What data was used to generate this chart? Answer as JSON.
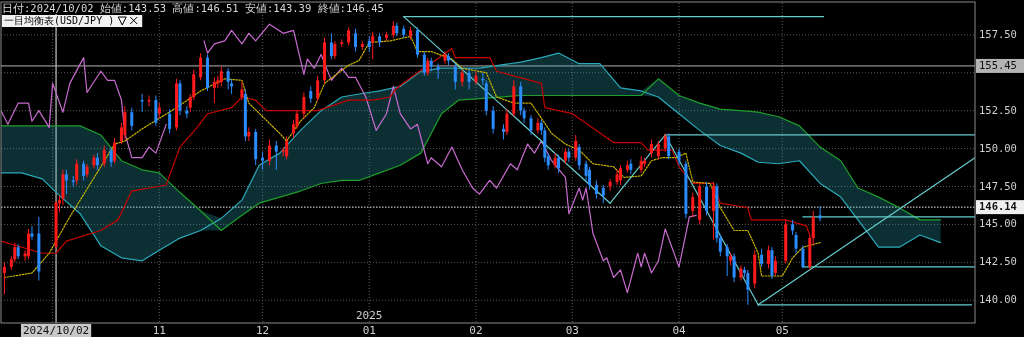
{
  "chart_data": {
    "type": "candlestick",
    "title": "一目均衡表(USD/JPY )",
    "subtitle": "日付:2024/10/02 始値:143.53 高値:146.51 安値:143.39 終値:146.45",
    "grid": true,
    "xlim": [
      "2024-09-16",
      "2025-06-26"
    ],
    "ylim": [
      138.5,
      159.6
    ],
    "xticks": [
      {
        "value": "2024-10-01",
        "label": null
      },
      {
        "value": "2024-11-01",
        "label": "11"
      },
      {
        "value": "2024-12-01",
        "label": "12"
      },
      {
        "value": "2025-01-01",
        "label": "01"
      },
      {
        "value": "2025-02-01",
        "label": "02"
      },
      {
        "value": "2025-03-01",
        "label": "03"
      },
      {
        "value": "2025-04-01",
        "label": "04"
      },
      {
        "value": "2025-05-01",
        "label": "05"
      }
    ],
    "yticks": [
      {
        "value": 140,
        "label": "140.00"
      },
      {
        "value": 142.5,
        "label": "142.50"
      },
      {
        "value": 145,
        "label": "145.00"
      },
      {
        "value": 147.5,
        "label": "147.50"
      },
      {
        "value": 150,
        "label": "150.00"
      },
      {
        "value": 152.5,
        "label": "152.50"
      },
      {
        "value": 155,
        "label": null
      },
      {
        "value": 157.5,
        "label": "157.50"
      }
    ],
    "ref_lines": [
      {
        "axis": "x",
        "value": "2024-10-02",
        "label": "2024/10/02",
        "color": "#c8c8c8"
      },
      {
        "axis": "y",
        "value": 155.45,
        "label": "155.45",
        "color": "#b4b4b4",
        "line_style": "solid"
      },
      {
        "axis": "y",
        "value": 146.14,
        "label": "146.14",
        "color": "#f0f0f0",
        "line_style": "dotted"
      }
    ],
    "annotations": [
      "2025"
    ],
    "series": [
      {
        "type": "line",
        "color": "#2aa9b9",
        "x": [
          "2024-09-16",
          "2024-09-22",
          "2024-09-28",
          "2024-10-03",
          "2024-10-09",
          "2024-10-15",
          "2024-10-21",
          "2024-10-27",
          "2024-11-01",
          "2024-11-07",
          "2024-11-13",
          "2024-11-19",
          "2024-11-25",
          "2024-11-30",
          "2024-12-06",
          "2024-12-12",
          "2024-12-18",
          "2024-12-24",
          "2024-12-29",
          "2025-01-04",
          "2025-01-10",
          "2025-01-16",
          "2025-01-22",
          "2025-01-27",
          "2025-02-02",
          "2025-02-08",
          "2025-02-14",
          "2025-02-20",
          "2025-02-25",
          "2025-03-03",
          "2025-03-09",
          "2025-03-15",
          "2025-03-21",
          "2025-03-26",
          "2025-04-01",
          "2025-04-07",
          "2025-04-13",
          "2025-04-19",
          "2025-04-24",
          "2025-04-30",
          "2025-05-06",
          "2025-05-12",
          "2025-05-18",
          "2025-05-23",
          "2025-05-29",
          "2025-06-04",
          "2025-06-10",
          "2025-06-16"
        ],
        "values": [
          148.4,
          148.4,
          148.0,
          146.9,
          145.7,
          143.6,
          142.8,
          142.6,
          143.3,
          144.1,
          144.6,
          145.4,
          146.6,
          148.9,
          149.7,
          151.2,
          152.5,
          153.4,
          153.6,
          153.8,
          154.1,
          155.1,
          155.3,
          155.3,
          155.3,
          155.5,
          155.7,
          156.0,
          156.3,
          155.6,
          155.6,
          154.0,
          153.8,
          153.4,
          152.3,
          151.2,
          150.2,
          149.7,
          149.1,
          149.0,
          149.2,
          147.7,
          146.8,
          145.3,
          143.5,
          143.5,
          144.3,
          143.8
        ],
        "lower": [
          148.4,
          148.4,
          148.0,
          146.9,
          145.7,
          143.6,
          142.8,
          142.6,
          143.3,
          144.1,
          144.6,
          144.6,
          145.6,
          146.4,
          146.8,
          147.2,
          147.7,
          147.9,
          147.9,
          148.4,
          148.9,
          149.7,
          152.3,
          153.2,
          153.3,
          153.4,
          153.5,
          153.5,
          153.5,
          153.5,
          153.5,
          153.5,
          153.5,
          153.4,
          152.3,
          151.2,
          150.2,
          149.7,
          149.1,
          149.0,
          149.2,
          147.7,
          146.8,
          145.3,
          143.5,
          143.5,
          144.3,
          143.8
        ],
        "upper": [
          151.5,
          151.5,
          151.5,
          151.5,
          151.5,
          150.9,
          149.2,
          148.6,
          148.4,
          147.1,
          145.9,
          145.4,
          146.6,
          148.9,
          149.7,
          151.2,
          152.5,
          153.4,
          153.6,
          153.8,
          154.1,
          155.1,
          155.3,
          155.3,
          155.3,
          155.5,
          155.7,
          156.0,
          156.3,
          155.6,
          155.6,
          154.0,
          153.8,
          154.6,
          153.5,
          153.0,
          152.6,
          152.5,
          152.4,
          152.1,
          151.5,
          150.1,
          149.2,
          147.4,
          146.8,
          146.1,
          145.3,
          145.3
        ]
      },
      {
        "type": "line",
        "color": "#1e9e2a",
        "x": [
          "2024-09-16",
          "2024-09-22",
          "2024-09-28",
          "2024-10-03",
          "2024-10-09",
          "2024-10-15",
          "2024-10-21",
          "2024-10-27",
          "2024-11-01",
          "2024-11-07",
          "2024-11-13",
          "2024-11-19",
          "2024-11-25",
          "2024-11-30",
          "2024-12-06",
          "2024-12-12",
          "2024-12-18",
          "2024-12-24",
          "2024-12-29",
          "2025-01-04",
          "2025-01-10",
          "2025-01-16",
          "2025-01-22",
          "2025-01-27",
          "2025-02-02",
          "2025-02-08",
          "2025-02-14",
          "2025-02-20",
          "2025-02-25",
          "2025-03-03",
          "2025-03-09",
          "2025-03-15",
          "2025-03-21",
          "2025-03-26",
          "2025-04-01",
          "2025-04-07",
          "2025-04-13",
          "2025-04-19",
          "2025-04-24",
          "2025-04-30",
          "2025-05-06",
          "2025-05-12",
          "2025-05-18",
          "2025-05-23",
          "2025-05-29",
          "2025-06-04",
          "2025-06-10",
          "2025-06-16"
        ],
        "values": [
          151.5,
          151.5,
          151.5,
          151.5,
          151.5,
          150.9,
          149.2,
          148.6,
          148.4,
          147.1,
          145.9,
          144.6,
          145.6,
          146.4,
          146.8,
          147.2,
          147.7,
          147.9,
          147.9,
          148.4,
          148.9,
          149.7,
          152.3,
          153.2,
          153.3,
          153.4,
          153.5,
          153.5,
          153.5,
          153.5,
          153.5,
          153.5,
          153.5,
          154.6,
          153.5,
          153.0,
          152.6,
          152.5,
          152.4,
          152.1,
          151.5,
          150.1,
          149.2,
          147.4,
          146.8,
          146.1,
          145.3,
          145.3
        ]
      },
      {
        "type": "line",
        "color": "#c86cd0",
        "x": [
          "2024-09-16",
          "2024-09-18",
          "2024-09-21",
          "2024-09-24",
          "2024-09-25",
          "2024-09-27",
          "2024-09-30",
          "2024-10-01",
          "2024-10-04",
          "2024-10-06",
          "2024-10-10",
          "2024-10-11",
          "2024-10-15",
          "2024-10-17",
          "2024-10-19",
          "2024-10-21",
          "2024-10-22",
          "2024-10-24",
          "2024-10-27",
          "2024-10-29",
          "2024-10-31",
          "2024-11-03",
          "2024-11-07",
          "2024-11-11",
          "2024-11-14",
          "2024-11-15",
          "2024-11-17",
          "2024-11-20",
          "2024-11-22",
          "2024-11-25",
          "2024-11-27",
          "2024-11-29",
          "2024-12-03",
          "2024-12-07",
          "2024-12-10",
          "2024-12-13",
          "2024-12-14",
          "2024-12-16",
          "2024-12-18",
          "2024-12-21",
          "2024-12-24",
          "2024-12-26",
          "2024-12-28",
          "2024-12-31",
          "2025-01-03",
          "2025-01-06",
          "2025-01-08",
          "2025-01-10",
          "2025-01-13",
          "2025-01-15",
          "2025-01-18",
          "2025-01-19",
          "2025-01-22",
          "2025-01-25",
          "2025-01-28",
          "2025-01-31",
          "2025-02-02",
          "2025-02-05",
          "2025-02-07",
          "2025-02-11",
          "2025-02-13",
          "2025-02-16",
          "2025-02-18",
          "2025-02-20",
          "2025-02-23",
          "2025-02-27",
          "2025-02-28",
          "2025-03-03",
          "2025-03-04",
          "2025-03-05",
          "2025-03-07",
          "2025-03-10",
          "2025-03-11",
          "2025-03-13",
          "2025-03-15",
          "2025-03-17",
          "2025-03-20",
          "2025-03-21",
          "2025-03-22",
          "2025-03-24",
          "2025-03-26",
          "2025-03-28",
          "2025-04-01",
          "2025-04-04",
          "2025-04-06"
        ],
        "values": [
          152.5,
          151.6,
          153.0,
          153.0,
          151.8,
          152.5,
          151.4,
          154.3,
          152.4,
          154.3,
          156.0,
          153.7,
          155.1,
          154.5,
          154.5,
          153.2,
          151.0,
          149.4,
          149.4,
          150.1,
          149.7,
          151.6,
          null,
          null,
          157.1,
          156.3,
          156.9,
          157.1,
          157.8,
          156.9,
          157.6,
          157.1,
          158.2,
          157.6,
          157.8,
          154.9,
          155.9,
          155.3,
          156.2,
          154.5,
          155.3,
          154.7,
          154.7,
          153.4,
          151.2,
          152.3,
          154.1,
          152.3,
          151.3,
          151.6,
          149.0,
          149.4,
          148.8,
          150.1,
          148.6,
          147.4,
          147.0,
          147.9,
          147.4,
          149.0,
          148.6,
          150.3,
          149.7,
          150.5,
          149.2,
          148.1,
          145.7,
          147.4,
          146.6,
          147.4,
          144.4,
          142.6,
          142.8,
          141.5,
          142.0,
          140.5,
          143.1,
          142.2,
          143.1,
          141.8,
          142.6,
          144.7,
          142.2,
          145.5,
          145.6
        ]
      },
      {
        "type": "line",
        "color": "#c40000",
        "x": [
          "2024-09-16",
          "2024-09-28",
          "2024-10-02",
          "2024-10-05",
          "2024-10-15",
          "2024-10-20",
          "2024-10-24",
          "2024-11-03",
          "2024-11-07",
          "2024-11-12",
          "2024-11-15",
          "2024-11-22",
          "2024-11-25",
          "2024-11-29",
          "2024-12-02",
          "2024-12-17",
          "2024-12-26",
          "2025-01-02",
          "2025-01-07",
          "2025-01-09",
          "2025-01-15",
          "2025-01-22",
          "2025-01-25",
          "2025-01-26",
          "2025-02-05",
          "2025-02-07",
          "2025-02-20",
          "2025-02-21",
          "2025-03-01",
          "2025-03-13",
          "2025-03-21",
          "2025-03-23",
          "2025-03-30",
          "2025-04-01",
          "2025-04-05",
          "2025-04-11",
          "2025-04-13",
          "2025-04-21",
          "2025-04-22",
          "2025-05-02",
          "2025-05-08",
          "2025-05-09"
        ],
        "values": [
          143.9,
          143.1,
          143.1,
          143.9,
          144.6,
          145.3,
          147.2,
          147.6,
          150.1,
          151.4,
          152.3,
          152.7,
          153.4,
          153.2,
          152.5,
          152.5,
          153.2,
          153.2,
          153.4,
          154.0,
          155.0,
          156.1,
          156.6,
          156.0,
          156.0,
          155.1,
          154.3,
          152.7,
          152.3,
          150.4,
          150.4,
          149.9,
          149.9,
          148.8,
          147.7,
          147.7,
          146.4,
          146.1,
          145.3,
          145.3,
          144.9,
          144.3
        ]
      },
      {
        "type": "line",
        "color": "#c8b400",
        "line_style": "dotted",
        "x": [
          "2024-09-17",
          "2024-09-25",
          "2024-09-30",
          "2024-10-06",
          "2024-10-09",
          "2024-10-15",
          "2024-10-19",
          "2024-10-22",
          "2024-10-27",
          "2024-11-01",
          "2024-11-06",
          "2024-11-13",
          "2024-11-20",
          "2024-11-25",
          "2024-11-27",
          "2024-12-06",
          "2024-12-08",
          "2024-12-12",
          "2024-12-16",
          "2024-12-19",
          "2024-12-26",
          "2024-12-29",
          "2025-01-01",
          "2025-01-07",
          "2025-01-13",
          "2025-01-15",
          "2025-01-19",
          "2025-01-25",
          "2025-01-28",
          "2025-02-04",
          "2025-02-07",
          "2025-02-12",
          "2025-02-17",
          "2025-02-20",
          "2025-02-23",
          "2025-02-27",
          "2025-03-03",
          "2025-03-07",
          "2025-03-13",
          "2025-03-16",
          "2025-03-21",
          "2025-03-24",
          "2025-03-27",
          "2025-03-31",
          "2025-04-03",
          "2025-04-05",
          "2025-04-10",
          "2025-04-13",
          "2025-04-17",
          "2025-04-21",
          "2025-04-24",
          "2025-04-25",
          "2025-05-01",
          "2025-05-04",
          "2025-05-07",
          "2025-05-12"
        ],
        "values": [
          141.5,
          141.8,
          143.1,
          145.5,
          146.6,
          148.8,
          150.3,
          150.5,
          151.3,
          152.0,
          152.7,
          153.8,
          154.6,
          154.5,
          153.0,
          151.0,
          150.5,
          151.8,
          152.7,
          154.3,
          155.5,
          155.8,
          157.0,
          157.1,
          157.4,
          156.4,
          156.4,
          155.9,
          155.3,
          155.0,
          153.4,
          153.0,
          153.0,
          152.0,
          151.0,
          150.3,
          149.9,
          149.0,
          148.8,
          148.1,
          148.2,
          149.2,
          149.4,
          149.4,
          149.7,
          147.8,
          147.7,
          146.1,
          144.6,
          144.6,
          143.1,
          141.6,
          141.6,
          142.8,
          143.5,
          143.8
        ]
      },
      {
        "type": "line",
        "color": "#66cccc",
        "x": [
          "2025-01-11",
          "2025-05-13"
        ],
        "values": [
          158.7,
          158.7
        ]
      },
      {
        "type": "line",
        "color": "#66cccc",
        "x": [
          "2025-01-11",
          "2025-03-12"
        ],
        "values": [
          158.7,
          146.4
        ]
      },
      {
        "type": "line",
        "color": "#66cccc",
        "x": [
          "2025-03-12",
          "2025-03-28"
        ],
        "values": [
          146.4,
          150.9
        ]
      },
      {
        "type": "line",
        "color": "#66cccc",
        "x": [
          "2025-03-28",
          "2025-06-26"
        ],
        "values": [
          150.9,
          150.9
        ]
      },
      {
        "type": "line",
        "color": "#66cccc",
        "x": [
          "2025-03-28",
          "2025-04-24"
        ],
        "values": [
          150.9,
          139.7
        ]
      },
      {
        "type": "line",
        "color": "#66cccc",
        "x": [
          "2025-04-24",
          "2025-06-25"
        ],
        "values": [
          139.7,
          139.7
        ]
      },
      {
        "type": "line",
        "color": "#66cccc",
        "x": [
          "2025-04-24",
          "2025-06-26"
        ],
        "values": [
          139.7,
          149.4
        ]
      },
      {
        "type": "line",
        "color": "#66cccc",
        "x": [
          "2025-05-07",
          "2025-06-26"
        ],
        "values": [
          142.2,
          142.2
        ]
      },
      {
        "type": "line",
        "color": "#66cccc",
        "x": [
          "2025-05-07",
          "2025-06-26"
        ],
        "values": [
          145.5,
          145.5
        ]
      },
      {
        "color": "#ff1a1a",
        "x": [
          "2024-09-17",
          "2024-09-19",
          "2024-09-20",
          "2024-09-23",
          "2024-09-24",
          "2024-10-02",
          "2024-10-03",
          "2024-10-04",
          "2024-10-08",
          "2024-10-11",
          "2024-10-13",
          "2024-10-16",
          "2024-10-19",
          "2024-10-21",
          "2024-10-22",
          "2024-10-29",
          "2024-11-01",
          "2024-11-06",
          "2024-11-10",
          "2024-11-11",
          "2024-11-13",
          "2024-11-17",
          "2024-11-18",
          "2024-11-19",
          "2024-11-25",
          "2024-11-27",
          "2024-12-03",
          "2024-12-07",
          "2024-12-08",
          "2024-12-10",
          "2024-12-11",
          "2024-12-13",
          "2024-12-17",
          "2024-12-19",
          "2024-12-22",
          "2024-12-24",
          "2024-12-26",
          "2024-12-30",
          "2025-01-02",
          "2025-01-06",
          "2025-01-08",
          "2025-01-13",
          "2025-01-18",
          "2025-01-23",
          "2025-01-28",
          "2025-02-01",
          "2025-02-10",
          "2025-02-12",
          "2025-02-19",
          "2025-02-24",
          "2025-02-27",
          "2025-03-02",
          "2025-03-12",
          "2025-03-14",
          "2025-03-15",
          "2025-03-17",
          "2025-03-21",
          "2025-03-22",
          "2025-03-24",
          "2025-03-26",
          "2025-03-28",
          "2025-04-05",
          "2025-04-07",
          "2025-04-11",
          "2025-04-16",
          "2025-04-19",
          "2025-04-23",
          "2025-04-27",
          "2025-04-29",
          "2025-05-02",
          "2025-05-09",
          "2025-05-10"
        ],
        "ohlc": [
          [
            141.8,
            142.5,
            140.4,
            142.2
          ],
          [
            142.2,
            142.9,
            142.0,
            142.7
          ],
          [
            142.7,
            143.8,
            142.5,
            143.5
          ],
          [
            142.9,
            143.3,
            142.6,
            143.1
          ],
          [
            142.9,
            144.7,
            142.7,
            144.4
          ],
          [
            143.53,
            146.51,
            143.39,
            146.45
          ],
          [
            146.4,
            146.9,
            145.8,
            146.6
          ],
          [
            146.7,
            148.6,
            146.3,
            148.3
          ],
          [
            147.9,
            149.3,
            147.6,
            149.0
          ],
          [
            148.3,
            149.0,
            148.1,
            148.8
          ],
          [
            148.9,
            149.6,
            148.7,
            149.4
          ],
          [
            149.0,
            150.2,
            148.8,
            149.9
          ],
          [
            149.2,
            150.7,
            149.0,
            150.4
          ],
          [
            150.5,
            151.7,
            150.3,
            151.4
          ],
          [
            150.9,
            152.8,
            150.6,
            152.4
          ],
          [
            153.1,
            153.5,
            152.8,
            153.2
          ],
          [
            152.3,
            153.0,
            152.0,
            152.7
          ],
          [
            151.4,
            154.6,
            151.2,
            154.3
          ],
          [
            152.7,
            153.6,
            152.4,
            153.4
          ],
          [
            153.4,
            155.2,
            153.2,
            154.9
          ],
          [
            154.7,
            156.3,
            154.5,
            156.0
          ],
          [
            154.0,
            154.7,
            153.0,
            154.4
          ],
          [
            154.3,
            154.8,
            154.0,
            154.5
          ],
          [
            154.4,
            155.4,
            154.1,
            155.1
          ],
          [
            153.4,
            154.4,
            153.2,
            153.9
          ],
          [
            150.8,
            151.4,
            150.5,
            151.1
          ],
          [
            149.2,
            150.6,
            148.9,
            150.2
          ],
          [
            149.8,
            150.1,
            149.5,
            149.9
          ],
          [
            149.5,
            150.8,
            149.3,
            150.5
          ],
          [
            151.0,
            151.9,
            150.7,
            151.6
          ],
          [
            151.5,
            152.5,
            151.3,
            152.3
          ],
          [
            152.3,
            153.7,
            152.0,
            153.4
          ],
          [
            153.3,
            154.8,
            153.1,
            154.5
          ],
          [
            154.5,
            157.3,
            154.3,
            157.0
          ],
          [
            156.1,
            157.1,
            155.9,
            156.9
          ],
          [
            156.9,
            157.2,
            156.7,
            157.0
          ],
          [
            157.0,
            158.0,
            156.8,
            157.8
          ],
          [
            156.7,
            157.1,
            156.5,
            156.9
          ],
          [
            157.0,
            157.7,
            155.9,
            157.4
          ],
          [
            157.3,
            157.7,
            157.1,
            157.5
          ],
          [
            157.5,
            158.4,
            157.3,
            158.1
          ],
          [
            157.4,
            158.0,
            157.2,
            157.8
          ],
          [
            155.0,
            156.0,
            154.8,
            155.8
          ],
          [
            155.8,
            156.4,
            155.6,
            156.2
          ],
          [
            154.4,
            155.2,
            154.1,
            155.0
          ],
          [
            154.4,
            155.1,
            154.2,
            154.8
          ],
          [
            151.1,
            152.6,
            150.9,
            152.3
          ],
          [
            152.3,
            154.5,
            152.1,
            154.1
          ],
          [
            151.2,
            152.0,
            151.0,
            151.7
          ],
          [
            148.9,
            149.7,
            148.7,
            149.4
          ],
          [
            149.2,
            150.0,
            149.0,
            149.8
          ],
          [
            149.4,
            150.9,
            149.2,
            150.5
          ],
          [
            147.5,
            148.0,
            147.2,
            147.8
          ],
          [
            147.8,
            148.6,
            147.6,
            148.3
          ],
          [
            147.9,
            148.9,
            147.6,
            148.7
          ],
          [
            148.6,
            149.2,
            148.4,
            148.9
          ],
          [
            148.6,
            149.5,
            148.4,
            149.2
          ],
          [
            149.0,
            149.4,
            148.8,
            149.2
          ],
          [
            149.7,
            150.6,
            149.4,
            150.3
          ],
          [
            149.5,
            150.5,
            149.3,
            150.3
          ],
          [
            150.0,
            151.0,
            149.8,
            150.8
          ],
          [
            145.9,
            147.1,
            145.5,
            146.8
          ],
          [
            145.3,
            147.7,
            145.0,
            147.5
          ],
          [
            145.9,
            147.8,
            144.0,
            147.5
          ],
          [
            142.6,
            143.1,
            142.3,
            142.9
          ],
          [
            141.5,
            142.3,
            141.3,
            142.1
          ],
          [
            141.1,
            143.3,
            140.8,
            143.0
          ],
          [
            142.4,
            143.6,
            142.1,
            143.3
          ],
          [
            141.8,
            142.9,
            141.6,
            142.6
          ],
          [
            142.6,
            145.3,
            142.4,
            145.0
          ],
          [
            142.2,
            144.3,
            142.0,
            144.1
          ],
          [
            144.1,
            145.9,
            143.6,
            145.5
          ]
        ]
      },
      {
        "color": "#2a8cff",
        "x": [
          "2024-09-21",
          "2024-09-25",
          "2024-09-27",
          "2024-10-05",
          "2024-10-07",
          "2024-10-10",
          "2024-10-14",
          "2024-10-18",
          "2024-10-24",
          "2024-10-27",
          "2024-10-31",
          "2024-11-04",
          "2024-11-07",
          "2024-11-09",
          "2024-11-15",
          "2024-11-21",
          "2024-11-22",
          "2024-11-26",
          "2024-11-29",
          "2024-12-01",
          "2024-12-05",
          "2024-12-15",
          "2024-12-21",
          "2024-12-28",
          "2025-01-01",
          "2025-01-04",
          "2025-01-09",
          "2025-01-11",
          "2025-01-15",
          "2025-01-17",
          "2025-01-19",
          "2025-01-21",
          "2025-01-24",
          "2025-01-26",
          "2025-01-30",
          "2025-02-03",
          "2025-02-04",
          "2025-02-06",
          "2025-02-09",
          "2025-02-14",
          "2025-02-15",
          "2025-02-17",
          "2025-02-20",
          "2025-02-21",
          "2025-02-22",
          "2025-02-25",
          "2025-02-28",
          "2025-03-03",
          "2025-03-05",
          "2025-03-06",
          "2025-03-08",
          "2025-03-10",
          "2025-03-18",
          "2025-03-29",
          "2025-04-01",
          "2025-04-03",
          "2025-04-09",
          "2025-04-12",
          "2025-04-13",
          "2025-04-15",
          "2025-04-17",
          "2025-04-20",
          "2025-04-21",
          "2025-04-25",
          "2025-04-28",
          "2025-05-04",
          "2025-05-05",
          "2025-05-07",
          "2025-05-12"
        ],
        "ohlc": [
          [
            143.5,
            143.7,
            142.7,
            142.9
          ],
          [
            144.4,
            144.9,
            144.0,
            144.2
          ],
          [
            144.4,
            145.5,
            141.3,
            141.9
          ],
          [
            148.3,
            148.6,
            147.0,
            147.9
          ],
          [
            147.9,
            148.2,
            147.5,
            147.8
          ],
          [
            149.0,
            149.2,
            147.9,
            148.2
          ],
          [
            149.4,
            149.7,
            148.6,
            148.9
          ],
          [
            149.9,
            150.1,
            148.8,
            149.1
          ],
          [
            152.4,
            152.7,
            151.2,
            151.5
          ],
          [
            153.2,
            153.6,
            152.4,
            153.1
          ],
          [
            153.2,
            153.5,
            151.5,
            151.7
          ],
          [
            152.3,
            152.6,
            151.0,
            151.3
          ],
          [
            154.3,
            154.5,
            152.2,
            152.5
          ],
          [
            152.5,
            152.8,
            152.0,
            152.3
          ],
          [
            156.0,
            156.2,
            153.8,
            154.0
          ],
          [
            155.1,
            155.3,
            153.9,
            154.4
          ],
          [
            154.3,
            154.6,
            153.6,
            154.1
          ],
          [
            153.6,
            153.9,
            150.5,
            150.8
          ],
          [
            151.1,
            151.3,
            148.9,
            149.3
          ],
          [
            149.4,
            149.8,
            148.6,
            149.2
          ],
          [
            150.2,
            150.5,
            148.6,
            149.8
          ],
          [
            153.8,
            154.1,
            153.0,
            153.3
          ],
          [
            157.0,
            157.6,
            155.9,
            156.1
          ],
          [
            157.6,
            157.9,
            156.4,
            156.7
          ],
          [
            157.1,
            157.4,
            156.4,
            156.7
          ],
          [
            157.4,
            157.6,
            156.7,
            157.0
          ],
          [
            158.1,
            158.3,
            157.4,
            157.6
          ],
          [
            157.9,
            158.1,
            157.3,
            157.5
          ],
          [
            157.8,
            158.0,
            156.0,
            156.2
          ],
          [
            156.2,
            156.4,
            154.8,
            155.0
          ],
          [
            155.8,
            156.0,
            155.1,
            155.4
          ],
          [
            155.4,
            155.6,
            154.6,
            155.2
          ],
          [
            156.1,
            156.3,
            155.5,
            155.8
          ],
          [
            155.4,
            155.6,
            153.9,
            154.4
          ],
          [
            155.0,
            155.3,
            153.9,
            154.4
          ],
          [
            154.6,
            155.0,
            154.2,
            154.5
          ],
          [
            154.3,
            154.5,
            152.2,
            152.5
          ],
          [
            152.5,
            152.8,
            151.0,
            151.3
          ],
          [
            151.3,
            151.6,
            150.6,
            151.1
          ],
          [
            154.1,
            154.4,
            152.2,
            152.5
          ],
          [
            152.5,
            152.7,
            151.7,
            152.0
          ],
          [
            152.0,
            152.2,
            150.9,
            151.2
          ],
          [
            151.7,
            151.9,
            150.9,
            151.2
          ],
          [
            151.2,
            151.4,
            149.1,
            149.4
          ],
          [
            149.5,
            149.7,
            148.6,
            148.9
          ],
          [
            149.4,
            149.6,
            148.4,
            148.7
          ],
          [
            149.8,
            150.0,
            149.1,
            149.4
          ],
          [
            150.1,
            150.3,
            148.6,
            148.9
          ],
          [
            149.0,
            149.2,
            147.9,
            148.2
          ],
          [
            148.6,
            148.8,
            147.3,
            147.6
          ],
          [
            147.6,
            147.9,
            146.7,
            147.0
          ],
          [
            147.4,
            147.6,
            146.4,
            146.9
          ],
          [
            149.0,
            149.3,
            148.3,
            148.6
          ],
          [
            150.8,
            151.0,
            149.3,
            149.5
          ],
          [
            149.8,
            150.0,
            148.9,
            149.2
          ],
          [
            149.0,
            149.2,
            145.4,
            145.7
          ],
          [
            147.5,
            147.8,
            145.6,
            145.9
          ],
          [
            147.5,
            147.7,
            143.8,
            144.1
          ],
          [
            144.1,
            144.3,
            142.9,
            143.2
          ],
          [
            143.5,
            143.7,
            141.6,
            142.9
          ],
          [
            142.9,
            143.1,
            141.2,
            141.5
          ],
          [
            142.0,
            142.2,
            141.5,
            141.8
          ],
          [
            141.8,
            142.0,
            139.7,
            140.7
          ],
          [
            143.0,
            143.4,
            142.2,
            142.4
          ],
          [
            143.3,
            143.5,
            141.4,
            141.6
          ],
          [
            145.0,
            145.3,
            144.3,
            144.6
          ],
          [
            144.3,
            144.5,
            143.1,
            143.4
          ],
          [
            143.4,
            143.6,
            142.1,
            142.2
          ],
          [
            145.6,
            146.2,
            145.2,
            145.4
          ]
        ]
      }
    ]
  }
}
